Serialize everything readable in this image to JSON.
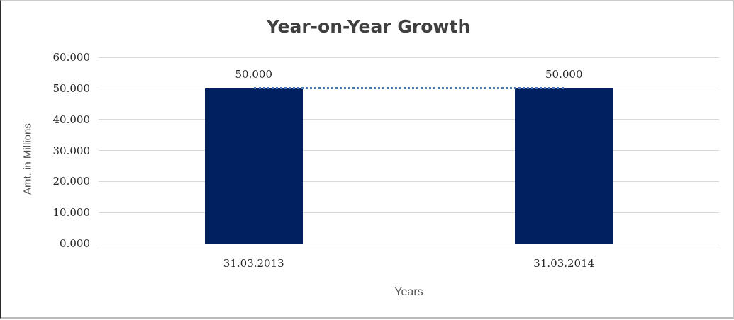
{
  "chart_data": {
    "type": "bar",
    "title": "Year-on-Year Growth",
    "xlabel": "Years",
    "ylabel": "Amt. in Millions",
    "categories": [
      "31.03.2013",
      "31.03.2014"
    ],
    "series": [
      {
        "name": "amount-bars",
        "type": "bar",
        "values": [
          50.0,
          50.0
        ]
      },
      {
        "name": "trend-line",
        "type": "line",
        "line_style": "dotted",
        "values": [
          50.0,
          50.0
        ]
      }
    ],
    "data_labels": [
      "50.000",
      "50.000"
    ],
    "y_tick_labels": [
      "0.000",
      "10.000",
      "20.000",
      "30.000",
      "40.000",
      "50.000",
      "60.000"
    ],
    "ylim": [
      0,
      60
    ],
    "y_tick_step": 10,
    "grid": "horizontal",
    "legend": "none",
    "colors": {
      "bar": "#002060",
      "trend_line": "#4a7ebb",
      "grid": "#d9d9d9",
      "title_text": "#404040",
      "tick_text": "#262626",
      "axis_title_text": "#4d4d4d"
    }
  }
}
